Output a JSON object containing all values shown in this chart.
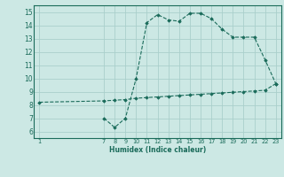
{
  "background_color": "#cce8e4",
  "grid_color": "#aacfcb",
  "line_color": "#1a6b5a",
  "x_ticks": [
    1,
    7,
    8,
    9,
    10,
    11,
    12,
    13,
    14,
    15,
    16,
    17,
    18,
    19,
    20,
    21,
    22,
    23
  ],
  "y_ticks": [
    6,
    7,
    8,
    9,
    10,
    11,
    12,
    13,
    14,
    15
  ],
  "ylim": [
    5.5,
    15.5
  ],
  "xlim": [
    0.5,
    23.5
  ],
  "xlabel": "Humidex (Indice chaleur)",
  "line1_x": [
    1,
    7,
    8,
    9,
    10,
    11,
    12,
    13,
    14,
    15,
    16,
    17,
    18,
    19,
    20,
    21,
    22,
    23
  ],
  "line1_y": [
    8.2,
    8.3,
    8.35,
    8.4,
    8.5,
    8.55,
    8.6,
    8.65,
    8.7,
    8.75,
    8.8,
    8.85,
    8.9,
    8.95,
    9.0,
    9.05,
    9.1,
    9.6
  ],
  "line2_x": [
    7,
    8,
    9,
    10,
    11,
    12,
    13,
    14,
    15,
    16,
    17,
    18,
    19,
    20,
    21,
    22,
    23
  ],
  "line2_y": [
    7.0,
    6.3,
    7.0,
    10.0,
    14.2,
    14.8,
    14.4,
    14.3,
    14.9,
    14.9,
    14.5,
    13.7,
    13.1,
    13.1,
    13.1,
    11.4,
    9.6
  ]
}
